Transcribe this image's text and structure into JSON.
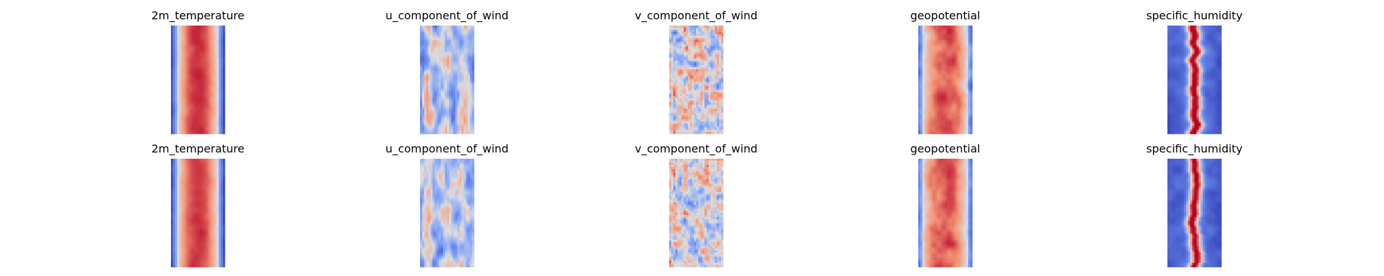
{
  "chart_data": {
    "type": "heatmap",
    "colormap": "coolwarm",
    "axes": "off",
    "grid": false,
    "rows": 2,
    "columns": 5,
    "panels": [
      {
        "row": 0,
        "title": "2m_temperature",
        "field": "2m_temperature"
      },
      {
        "row": 0,
        "title": "u_component_of_wind",
        "field": "u_component_of_wind"
      },
      {
        "row": 0,
        "title": "v_component_of_wind",
        "field": "v_component_of_wind"
      },
      {
        "row": 0,
        "title": "geopotential",
        "field": "geopotential"
      },
      {
        "row": 0,
        "title": "specific_humidity",
        "field": "specific_humidity"
      },
      {
        "row": 1,
        "title": "2m_temperature",
        "field": "2m_temperature"
      },
      {
        "row": 1,
        "title": "u_component_of_wind",
        "field": "u_component_of_wind"
      },
      {
        "row": 1,
        "title": "v_component_of_wind",
        "field": "v_component_of_wind"
      },
      {
        "row": 1,
        "title": "geopotential",
        "field": "geopotential"
      },
      {
        "row": 1,
        "title": "specific_humidity",
        "field": "specific_humidity"
      }
    ]
  }
}
